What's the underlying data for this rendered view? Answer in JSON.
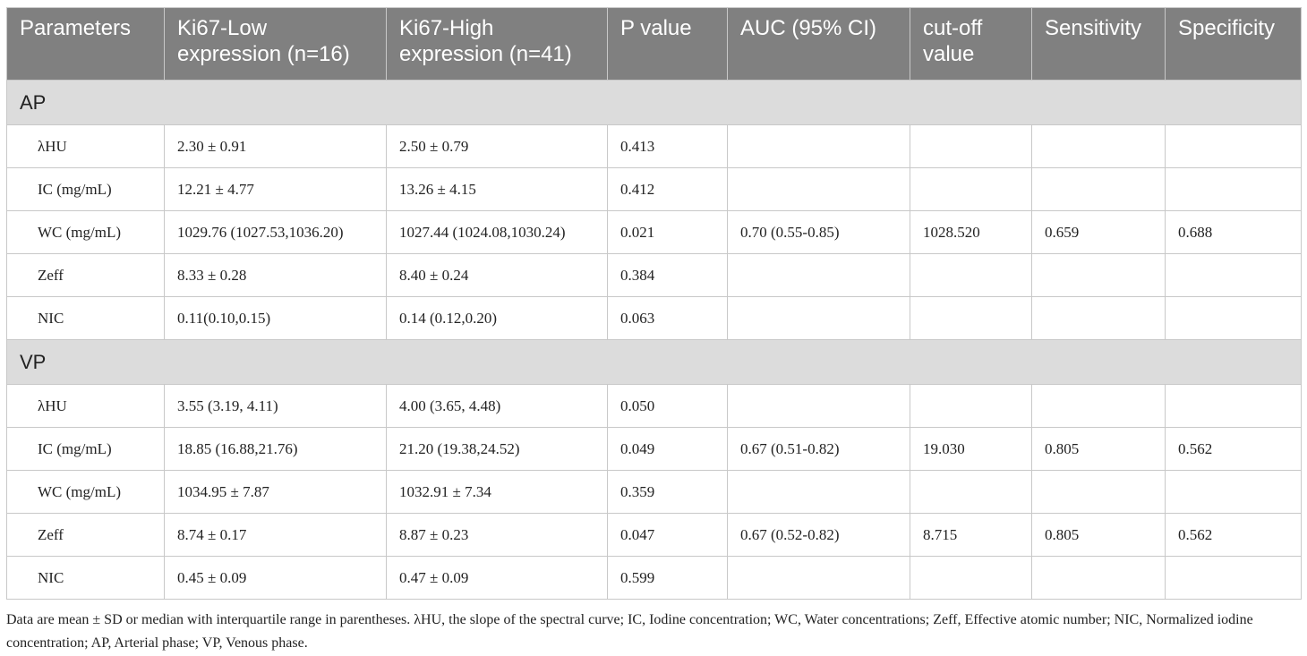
{
  "table": {
    "columns": [
      "Parameters",
      "Ki67-Low expression (n=16)",
      "Ki67-High expression (n=41)",
      "P value",
      "AUC (95% CI)",
      "cut-off value",
      "Sensitivity",
      "Specificity"
    ],
    "sections": [
      {
        "title": "AP",
        "rows": [
          [
            "λHU",
            "2.30 ± 0.91",
            "2.50 ± 0.79",
            "0.413",
            null,
            null,
            null,
            null
          ],
          [
            "IC (mg/mL)",
            "12.21 ± 4.77",
            "13.26 ± 4.15",
            "0.412",
            null,
            null,
            null,
            null
          ],
          [
            "WC (mg/mL)",
            "1029.76 (1027.53,1036.20)",
            "1027.44 (1024.08,1030.24)",
            "0.021",
            "0.70 (0.55-0.85)",
            "1028.520",
            "0.659",
            "0.688"
          ],
          [
            "Zeff",
            "8.33 ± 0.28",
            "8.40 ± 0.24",
            "0.384",
            null,
            null,
            null,
            null
          ],
          [
            "NIC",
            "0.11(0.10,0.15)",
            "0.14 (0.12,0.20)",
            "0.063",
            null,
            null,
            null,
            null
          ]
        ]
      },
      {
        "title": "VP",
        "rows": [
          [
            "λHU",
            "3.55 (3.19, 4.11)",
            "4.00 (3.65, 4.48)",
            "0.050",
            null,
            null,
            null,
            null
          ],
          [
            "IC (mg/mL)",
            "18.85 (16.88,21.76)",
            "21.20 (19.38,24.52)",
            "0.049",
            "0.67 (0.51-0.82)",
            "19.030",
            "0.805",
            "0.562"
          ],
          [
            "WC (mg/mL)",
            "1034.95 ± 7.87",
            "1032.91 ± 7.34",
            "0.359",
            null,
            null,
            null,
            null
          ],
          [
            "Zeff",
            "8.74 ± 0.17",
            "8.87 ± 0.23",
            "0.047",
            "0.67 (0.52-0.82)",
            "8.715",
            "0.805",
            "0.562"
          ],
          [
            "NIC",
            "0.45 ± 0.09",
            "0.47 ± 0.09",
            "0.599",
            null,
            null,
            null,
            null
          ]
        ]
      }
    ]
  },
  "footnote": "Data are mean ± SD or median with interquartile range in parentheses. λHU, the slope of the spectral curve; IC, Iodine concentration; WC, Water concentrations; Zeff, Effective atomic number; NIC, Normalized iodine concentration; AP, Arterial phase; VP, Venous phase."
}
